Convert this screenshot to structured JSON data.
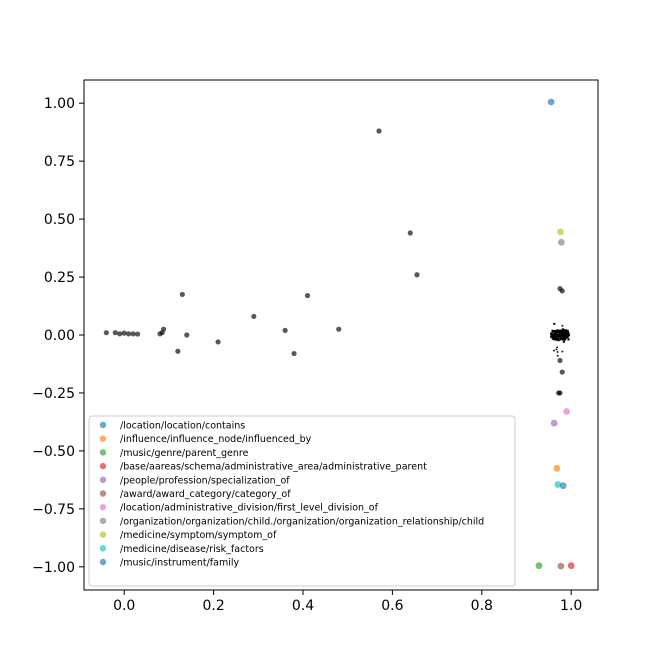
{
  "chart_data": {
    "type": "scatter",
    "title": "",
    "xlabel": "",
    "ylabel": "",
    "xlim": [
      -0.09,
      1.06
    ],
    "ylim": [
      -1.1,
      1.1
    ],
    "xticks": [
      0.0,
      0.2,
      0.4,
      0.6,
      0.8,
      1.0
    ],
    "xtick_labels": [
      "0.0",
      "0.2",
      "0.4",
      "0.6",
      "0.8",
      "1.0"
    ],
    "yticks": [
      1.0,
      0.75,
      0.5,
      0.25,
      0.0,
      -0.25,
      -0.5,
      -0.75,
      -1.0
    ],
    "ytick_labels": [
      "1.00",
      "0.75",
      "0.50",
      "0.25",
      "0.00",
      "−0.25",
      "−0.50",
      "−0.75",
      "−1.00"
    ],
    "grid": false,
    "legend_position": "lower-right",
    "background_points": {
      "color": "#000000",
      "points": [
        [
          -0.04,
          0.01
        ],
        [
          -0.02,
          0.01
        ],
        [
          -0.01,
          0.005
        ],
        [
          0.0,
          0.008
        ],
        [
          0.01,
          0.005
        ],
        [
          0.02,
          0.005
        ],
        [
          0.03,
          0.004
        ],
        [
          0.08,
          0.005
        ],
        [
          0.085,
          0.01
        ],
        [
          0.088,
          0.025
        ],
        [
          0.12,
          -0.07
        ],
        [
          0.13,
          0.175
        ],
        [
          0.14,
          0.0
        ],
        [
          0.21,
          -0.03
        ],
        [
          0.29,
          0.08
        ],
        [
          0.36,
          0.02
        ],
        [
          0.38,
          -0.08
        ],
        [
          0.41,
          0.17
        ],
        [
          0.48,
          0.025
        ],
        [
          0.57,
          0.88
        ],
        [
          0.64,
          0.44
        ],
        [
          0.655,
          0.26
        ],
        [
          0.975,
          0.2
        ],
        [
          0.98,
          0.19
        ],
        [
          0.975,
          -0.11
        ],
        [
          0.98,
          -0.16
        ],
        [
          0.975,
          -0.25
        ],
        [
          0.972,
          -0.25
        ]
      ],
      "dense_cluster": {
        "x_range": [
          0.955,
          0.995
        ],
        "y_range": [
          -0.02,
          0.02
        ],
        "count": 140,
        "tail_x_range": [
          0.96,
          0.99
        ],
        "tail_y_range": [
          -0.09,
          0.05
        ],
        "tail_count": 24
      }
    },
    "series": [
      {
        "name": "/location/location/contains",
        "color": "#1f77b4",
        "points": [
          [
            0.955,
            1.005
          ]
        ]
      },
      {
        "name": "/influence/influence_node/influenced_by",
        "color": "#ff7f0e",
        "points": [
          [
            0.968,
            -0.575
          ]
        ]
      },
      {
        "name": "/music/genre/parent_genre",
        "color": "#2ca02c",
        "points": [
          [
            0.928,
            -0.995
          ]
        ]
      },
      {
        "name": "/base/aareas/schema/administrative_area/administrative_parent",
        "color": "#d62728",
        "points": [
          [
            1.0,
            -0.995
          ]
        ]
      },
      {
        "name": "/people/profession/specialization_of",
        "color": "#9467bd",
        "points": [
          [
            0.962,
            -0.38
          ]
        ]
      },
      {
        "name": "/award/award_category/category_of",
        "color": "#8c564b",
        "points": [
          [
            0.977,
            -0.997
          ]
        ]
      },
      {
        "name": "/location/administrative_division/first_level_division_of",
        "color": "#e377c2",
        "points": [
          [
            0.99,
            -0.33
          ]
        ]
      },
      {
        "name": "/organization/organization/child./organization/organization_relationship/child",
        "color": "#7f7f7f",
        "points": [
          [
            0.978,
            0.4
          ]
        ]
      },
      {
        "name": "/medicine/symptom/symptom_of",
        "color": "#bcbd22",
        "points": [
          [
            0.976,
            0.445
          ]
        ]
      },
      {
        "name": "/medicine/disease/risk_factors",
        "color": "#17becf",
        "points": [
          [
            0.97,
            -0.645
          ]
        ]
      },
      {
        "name": "/music/instrument/family",
        "color": "#1f77b4",
        "points": [
          [
            0.982,
            -0.65
          ]
        ]
      }
    ]
  }
}
